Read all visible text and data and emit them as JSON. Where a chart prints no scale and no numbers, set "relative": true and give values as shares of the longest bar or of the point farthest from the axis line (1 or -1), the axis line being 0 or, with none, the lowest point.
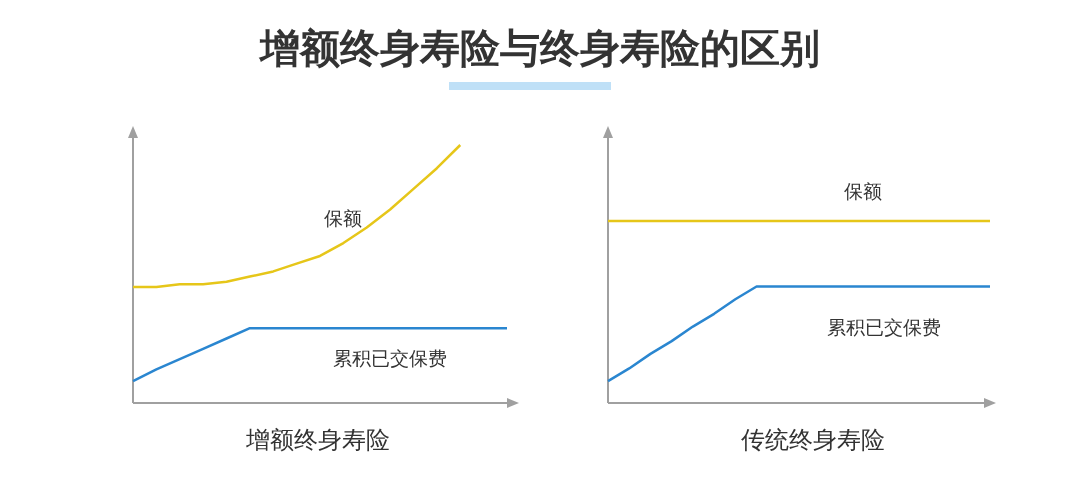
{
  "chart_data": [
    {
      "type": "line",
      "title": "增额终身寿险与终身寿险的区别",
      "xlabel": "增额终身寿险",
      "relative": true,
      "legend": false,
      "marker": "none",
      "categories": [
        null,
        null,
        null,
        null,
        null,
        null,
        null,
        null,
        null,
        null,
        null,
        null,
        null,
        null,
        null,
        null,
        null
      ],
      "series": [
        {
          "name": "保额",
          "color": "#e6c619",
          "values": [
            0.45,
            0.45,
            0.46,
            0.46,
            0.47,
            0.49,
            0.51,
            0.54,
            0.57,
            0.62,
            0.68,
            0.75,
            0.83,
            0.91,
            1,
            null,
            null
          ]
        },
        {
          "name": "累积已交保费",
          "color": "#2a86d0",
          "values": [
            0.085,
            0.13,
            0.17,
            0.21,
            0.25,
            0.29,
            0.29,
            0.29,
            0.29,
            0.29,
            0.29,
            0.29,
            0.29,
            0.29,
            0.29,
            0.29,
            0.29
          ]
        }
      ]
    },
    {
      "type": "line",
      "xlabel": "传统终身寿险",
      "relative": true,
      "legend": false,
      "marker": "none",
      "categories": [
        null,
        null,
        null,
        null,
        null,
        null,
        null,
        null,
        null,
        null,
        null,
        null,
        null,
        null,
        null,
        null,
        null,
        null,
        null
      ],
      "series": [
        {
          "name": "保额",
          "color": "#e6c619",
          "values": [
            1,
            1,
            1,
            1,
            1,
            1,
            1,
            1,
            1,
            1,
            1,
            1,
            1,
            1,
            1,
            1,
            1,
            1,
            1
          ]
        },
        {
          "name": "累积已交保费",
          "color": "#2a86d0",
          "values": [
            0.12,
            0.19,
            0.27,
            0.34,
            0.42,
            0.49,
            0.57,
            0.64,
            0.64,
            0.64,
            0.64,
            0.64,
            0.64,
            0.64,
            0.64,
            0.64,
            0.64,
            0.64,
            0.64
          ]
        }
      ]
    }
  ]
}
